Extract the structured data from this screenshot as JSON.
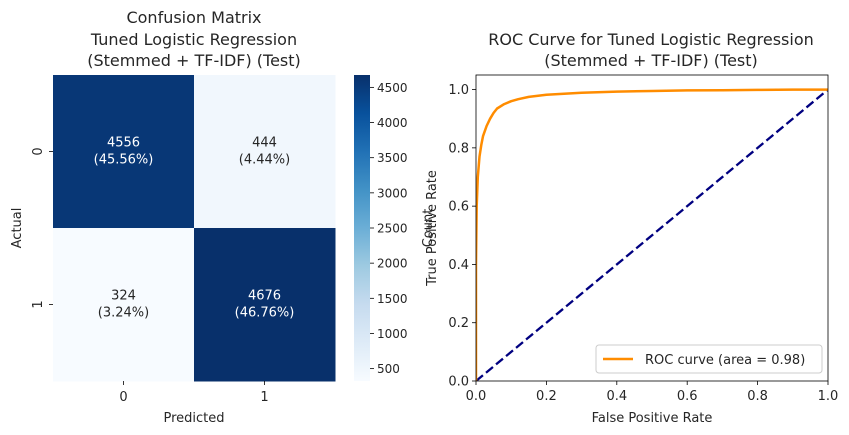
{
  "chart_data": [
    {
      "type": "heatmap",
      "title_lines": [
        "Confusion Matrix",
        "Tuned Logistic Regression",
        "(Stemmed + TF-IDF) (Test)"
      ],
      "xlabel": "Predicted",
      "ylabel": "Actual",
      "x_categories": [
        "0",
        "1"
      ],
      "y_categories": [
        "0",
        "1"
      ],
      "values": [
        [
          4556,
          444
        ],
        [
          324,
          4676
        ]
      ],
      "cell_labels": [
        [
          "4556\n(45.56%)",
          "444\n(4.44%)"
        ],
        [
          "324\n(3.24%)",
          "4676\n(46.76%)"
        ]
      ],
      "colormap": "Blues",
      "colorbar": {
        "label": "Count",
        "range": [
          324,
          4676
        ],
        "ticks": [
          500,
          1000,
          1500,
          2000,
          2500,
          3000,
          3500,
          4000,
          4500
        ],
        "tick_labels": [
          "500",
          "1000",
          "1500",
          "2000",
          "2500",
          "3000",
          "3500",
          "4000",
          "4500"
        ]
      }
    },
    {
      "type": "line",
      "title_lines": [
        "ROC Curve for Tuned Logistic Regression",
        "(Stemmed + TF-IDF) (Test)"
      ],
      "xlabel": "False Positive Rate",
      "ylabel": "True Positive Rate",
      "xlim": [
        0.0,
        1.0
      ],
      "ylim": [
        0.0,
        1.05
      ],
      "xticks": [
        "0.0",
        "0.2",
        "0.4",
        "0.6",
        "0.8",
        "1.0"
      ],
      "yticks": [
        "0.0",
        "0.2",
        "0.4",
        "0.6",
        "0.8",
        "1.0"
      ],
      "legend_position": "lower-right",
      "series": [
        {
          "name": "ROC curve (area = 0.98)",
          "color": "#ff8c00",
          "style": "solid",
          "x": [
            0.0,
            0.0,
            0.002,
            0.005,
            0.01,
            0.015,
            0.02,
            0.03,
            0.04,
            0.05,
            0.06,
            0.08,
            0.1,
            0.12,
            0.15,
            0.2,
            0.25,
            0.3,
            0.4,
            0.5,
            0.6,
            0.7,
            0.8,
            0.9,
            1.0
          ],
          "y": [
            0.0,
            0.4,
            0.6,
            0.7,
            0.77,
            0.81,
            0.84,
            0.875,
            0.9,
            0.92,
            0.935,
            0.95,
            0.96,
            0.967,
            0.975,
            0.982,
            0.986,
            0.989,
            0.993,
            0.995,
            0.997,
            0.998,
            0.999,
            1.0,
            1.0
          ]
        },
        {
          "color": "#000080",
          "style": "dashed",
          "x": [
            0.0,
            1.0
          ],
          "y": [
            0.0,
            1.0
          ]
        }
      ]
    }
  ]
}
